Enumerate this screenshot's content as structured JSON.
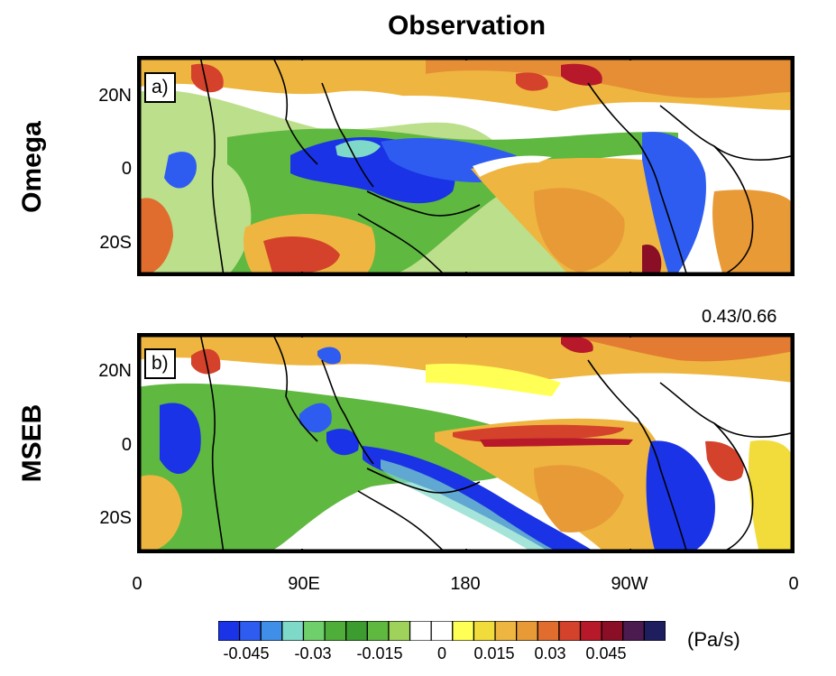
{
  "figure": {
    "title": "Observation",
    "corr_label": "0.43/0.66"
  },
  "rows": [
    {
      "label": "Omega",
      "tag": "a)"
    },
    {
      "label": "MSEB",
      "tag": "b)"
    }
  ],
  "axes": {
    "lat_ticks": [
      "20N",
      "0",
      "20S"
    ],
    "lon_ticks": [
      "0",
      "90E",
      "180",
      "90W",
      "0"
    ]
  },
  "colorbar": {
    "unit": "(Pa/s)",
    "labels": [
      "-0.045",
      "-0.03",
      "-0.015",
      "0",
      "0.015",
      "0.03",
      "0.045"
    ],
    "colors": [
      "#1a33e6",
      "#2e5cf0",
      "#3f8fe8",
      "#7fd9c9",
      "#6fcf6a",
      "#4fae3a",
      "#3c9c2f",
      "#5fb83f",
      "#9fd25a",
      "#ffffff",
      "#ffffff",
      "#ffff55",
      "#f2dc3c",
      "#eeb640",
      "#e89a37",
      "#e06d2e",
      "#d4422c",
      "#b7182a",
      "#8a0f26",
      "#4b1a4f",
      "#1e1e5e"
    ]
  },
  "map_colors": {
    "strong_down": "#1a33e6",
    "light_down": "#6fcf6a",
    "neutral": "#ffffff",
    "light_up": "#f2dc3c",
    "strong_up": "#d4422c"
  }
}
